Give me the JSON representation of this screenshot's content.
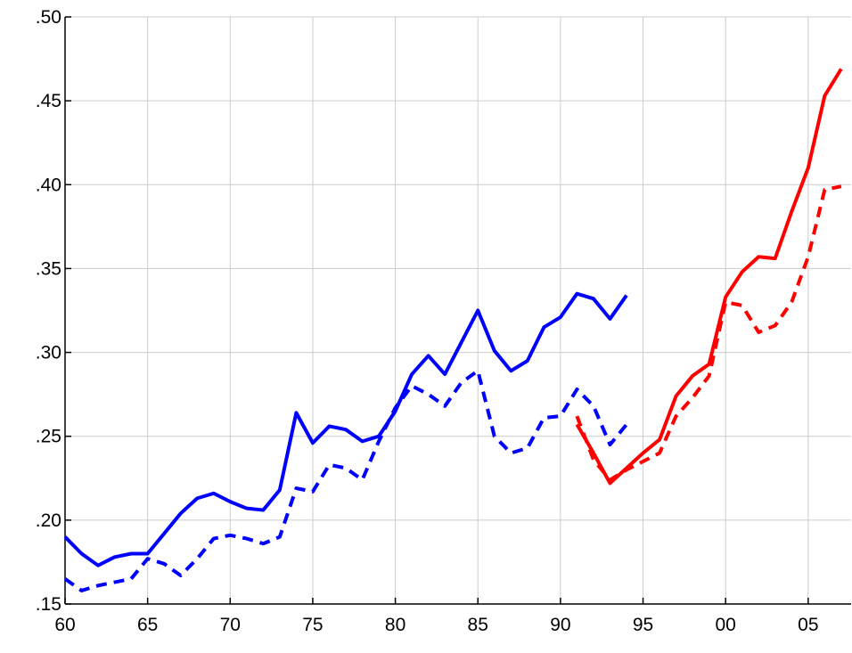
{
  "chart_data": {
    "type": "line",
    "x": [
      1960,
      1961,
      1962,
      1963,
      1964,
      1965,
      1966,
      1967,
      1968,
      1969,
      1970,
      1971,
      1972,
      1973,
      1974,
      1975,
      1976,
      1977,
      1978,
      1979,
      1980,
      1981,
      1982,
      1983,
      1984,
      1985,
      1986,
      1987,
      1988,
      1989,
      1990,
      1991,
      1992,
      1993,
      1994,
      1995,
      1996,
      1997,
      1998,
      1999,
      2000,
      2001,
      2002,
      2003,
      2004,
      2005,
      2006,
      2007
    ],
    "series": [
      {
        "color": "#0000ff",
        "dash": false,
        "values": [
          0.19,
          0.18,
          0.173,
          0.178,
          0.18,
          0.18,
          0.192,
          0.204,
          0.213,
          0.216,
          0.211,
          0.207,
          0.206,
          0.218,
          0.264,
          0.246,
          0.256,
          0.254,
          0.247,
          0.25,
          0.265,
          0.287,
          0.298,
          0.287,
          0.306,
          0.325,
          0.301,
          0.289,
          0.295,
          0.315,
          0.321,
          0.335,
          0.332,
          0.32,
          0.334,
          null,
          null,
          null,
          null,
          null,
          null,
          null,
          null,
          null,
          null,
          null,
          null,
          null
        ]
      },
      {
        "color": "#0000ff",
        "dash": true,
        "values": [
          0.165,
          0.158,
          0.161,
          0.163,
          0.165,
          0.177,
          0.174,
          0.167,
          0.177,
          0.189,
          0.191,
          0.189,
          0.186,
          0.19,
          0.219,
          0.217,
          0.233,
          0.231,
          0.224,
          0.247,
          0.267,
          0.28,
          0.275,
          0.268,
          0.282,
          0.289,
          0.25,
          0.24,
          0.243,
          0.261,
          0.262,
          0.278,
          0.268,
          0.245,
          0.257,
          null,
          null,
          null,
          null,
          null,
          null,
          null,
          null,
          null,
          null,
          null,
          null,
          null
        ]
      },
      {
        "color": "#ff0000",
        "dash": false,
        "values": [
          null,
          null,
          null,
          null,
          null,
          null,
          null,
          null,
          null,
          null,
          null,
          null,
          null,
          null,
          null,
          null,
          null,
          null,
          null,
          null,
          null,
          null,
          null,
          null,
          null,
          null,
          null,
          null,
          null,
          null,
          null,
          0.257,
          0.24,
          0.222,
          0.231,
          0.24,
          0.248,
          0.274,
          0.286,
          0.293,
          0.333,
          0.348,
          0.357,
          0.356,
          0.384,
          0.41,
          0.453,
          0.469
        ]
      },
      {
        "color": "#ff0000",
        "dash": true,
        "values": [
          null,
          null,
          null,
          null,
          null,
          null,
          null,
          null,
          null,
          null,
          null,
          null,
          null,
          null,
          null,
          null,
          null,
          null,
          null,
          null,
          null,
          null,
          null,
          null,
          null,
          null,
          null,
          null,
          null,
          null,
          null,
          0.262,
          0.236,
          0.224,
          0.23,
          0.235,
          0.24,
          0.262,
          0.273,
          0.286,
          0.33,
          0.328,
          0.312,
          0.316,
          0.33,
          0.357,
          0.397,
          0.399
        ]
      }
    ],
    "xlim": [
      1960,
      2007.6
    ],
    "xticks": [
      {
        "value": 1960,
        "label": "60"
      },
      {
        "value": 1965,
        "label": "65"
      },
      {
        "value": 1970,
        "label": "70"
      },
      {
        "value": 1975,
        "label": "75"
      },
      {
        "value": 1980,
        "label": "80"
      },
      {
        "value": 1985,
        "label": "85"
      },
      {
        "value": 1990,
        "label": "90"
      },
      {
        "value": 1995,
        "label": "95"
      },
      {
        "value": 2000,
        "label": "00"
      },
      {
        "value": 2005,
        "label": "05"
      }
    ],
    "ylim": [
      0.15,
      0.5
    ],
    "yticks": [
      {
        "value": 0.15,
        "label": ".15"
      },
      {
        "value": 0.2,
        "label": ".20"
      },
      {
        "value": 0.25,
        "label": ".25"
      },
      {
        "value": 0.3,
        "label": ".30"
      },
      {
        "value": 0.35,
        "label": ".35"
      },
      {
        "value": 0.4,
        "label": ".40"
      },
      {
        "value": 0.45,
        "label": ".45"
      },
      {
        "value": 0.5,
        "label": ".50"
      }
    ],
    "grid": true
  }
}
